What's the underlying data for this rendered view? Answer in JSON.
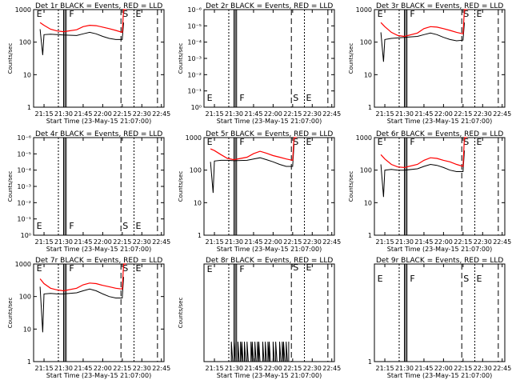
{
  "chart_data": [
    {
      "type": "line",
      "title": "Det 1r BLACK = Events, RED = LLD",
      "xlabel": "Start Time (23-May-15 21:07:00)",
      "ylabel": "Counts/sec",
      "x_ticks": [
        "21:15",
        "21:30",
        "21:45",
        "22:00",
        "22:15",
        "22:30",
        "22:45"
      ],
      "y_ticks": [
        "1",
        "10",
        "100",
        "1000"
      ],
      "y_scale": "log",
      "ylim": [
        1,
        1000
      ],
      "annotations": [
        "E",
        "F",
        "S",
        "E"
      ],
      "series": [
        {
          "name": "Events",
          "color": "#000000",
          "x": [
            "21:12",
            "21:14",
            "21:15",
            "21:20",
            "21:25",
            "21:30",
            "21:40",
            "21:45",
            "21:50",
            "21:55",
            "22:00",
            "22:05",
            "22:10",
            "22:15",
            "22:16"
          ],
          "y": [
            250,
            40,
            170,
            175,
            170,
            165,
            160,
            180,
            200,
            180,
            150,
            130,
            120,
            120,
            400
          ]
        },
        {
          "name": "LLD",
          "color": "#ff0000",
          "x": [
            "21:12",
            "21:15",
            "21:20",
            "21:25",
            "21:30",
            "21:40",
            "21:45",
            "21:50",
            "21:55",
            "22:00",
            "22:05",
            "22:10",
            "22:15",
            "22:16",
            "22:18"
          ],
          "y": [
            400,
            330,
            250,
            220,
            210,
            240,
            300,
            330,
            320,
            290,
            260,
            230,
            200,
            1000,
            1000
          ]
        }
      ]
    },
    {
      "type": "line",
      "title": "Det 2r BLACK = Events, RED = LLD",
      "xlabel": "Start Time (23-May-15 21:07:00)",
      "ylabel": "Counts/sec",
      "x_ticks": [
        "21:15",
        "21:30",
        "21:45",
        "22:00",
        "22:15",
        "22:30",
        "22:45"
      ],
      "y_ticks": [
        "10⁰",
        "10⁻¹",
        "10⁻²",
        "10⁻³",
        "10⁻⁴",
        "10⁻⁵",
        "10⁻⁶"
      ],
      "y_scale": "log",
      "annotations": [
        "E",
        "F",
        "S",
        "E"
      ],
      "series": []
    },
    {
      "type": "line",
      "title": "Det 3r BLACK = Events, RED = LLD",
      "xlabel": "Start Time (23-May-15 21:07:00)",
      "ylabel": "Counts/sec",
      "x_ticks": [
        "21:15",
        "21:30",
        "21:45",
        "22:00",
        "22:15",
        "22:30",
        "22:45"
      ],
      "y_ticks": [
        "1",
        "10",
        "100",
        "1000"
      ],
      "y_scale": "log",
      "ylim": [
        1,
        1000
      ],
      "annotations": [
        "E",
        "F",
        "S",
        "E"
      ],
      "series": [
        {
          "name": "Events",
          "color": "#000000",
          "x": [
            "21:12",
            "21:14",
            "21:15",
            "21:20",
            "21:25",
            "21:30",
            "21:40",
            "21:45",
            "21:50",
            "21:55",
            "22:00",
            "22:05",
            "22:10",
            "22:15",
            "22:16"
          ],
          "y": [
            200,
            25,
            120,
            130,
            135,
            140,
            150,
            170,
            190,
            170,
            140,
            120,
            110,
            115,
            400
          ]
        },
        {
          "name": "LLD",
          "color": "#ff0000",
          "x": [
            "21:12",
            "21:15",
            "21:20",
            "21:25",
            "21:30",
            "21:40",
            "21:45",
            "21:50",
            "21:55",
            "22:00",
            "22:05",
            "22:10",
            "22:15",
            "22:16",
            "22:18"
          ],
          "y": [
            400,
            300,
            200,
            160,
            150,
            190,
            260,
            300,
            290,
            260,
            230,
            200,
            180,
            1000,
            1000
          ]
        }
      ]
    },
    {
      "type": "line",
      "title": "Det 4r BLACK = Events, RED = LLD",
      "xlabel": "Start Time (23-May-15 21:07:00)",
      "ylabel": "Counts/sec",
      "x_ticks": [
        "21:15",
        "21:30",
        "21:45",
        "22:00",
        "22:15",
        "22:30",
        "22:45"
      ],
      "y_ticks": [
        "10⁰",
        "10⁻¹",
        "10⁻²",
        "10⁻³",
        "10⁻⁴",
        "10⁻⁵",
        "10⁻⁶"
      ],
      "y_scale": "log",
      "annotations": [
        "E",
        "F",
        "S",
        "E"
      ],
      "series": []
    },
    {
      "type": "line",
      "title": "Det 5r BLACK = Events, RED = LLD",
      "xlabel": "Start Time (23-May-15 21:07:00)",
      "ylabel": "Counts/sec",
      "x_ticks": [
        "21:15",
        "21:30",
        "21:45",
        "22:00",
        "22:15",
        "22:30",
        "22:45"
      ],
      "y_ticks": [
        "1",
        "10",
        "100",
        "1000"
      ],
      "y_scale": "log",
      "ylim": [
        1,
        1000
      ],
      "annotations": [
        "E",
        "F",
        "S",
        "E"
      ],
      "series": [
        {
          "name": "Events",
          "color": "#000000",
          "x": [
            "21:12",
            "21:14",
            "21:15",
            "21:20",
            "21:25",
            "21:30",
            "21:40",
            "21:45",
            "21:50",
            "21:55",
            "22:00",
            "22:05",
            "22:10",
            "22:15",
            "22:16"
          ],
          "y": [
            180,
            20,
            190,
            200,
            200,
            195,
            200,
            220,
            240,
            210,
            180,
            150,
            130,
            130,
            600
          ]
        },
        {
          "name": "LLD",
          "color": "#ff0000",
          "x": [
            "21:12",
            "21:15",
            "21:20",
            "21:25",
            "21:30",
            "21:40",
            "21:45",
            "21:50",
            "21:55",
            "22:00",
            "22:05",
            "22:10",
            "22:15",
            "22:16",
            "22:18"
          ],
          "y": [
            450,
            400,
            300,
            230,
            210,
            250,
            320,
            380,
            330,
            280,
            250,
            220,
            200,
            1000,
            1000
          ]
        }
      ]
    },
    {
      "type": "line",
      "title": "Det 6r BLACK = Events, RED = LLD",
      "xlabel": "Start Time (23-May-15 21:07:00)",
      "ylabel": "Counts/sec",
      "x_ticks": [
        "21:15",
        "21:30",
        "21:45",
        "22:00",
        "22:15",
        "22:30",
        "22:45"
      ],
      "y_ticks": [
        "1",
        "10",
        "100",
        "1000"
      ],
      "y_scale": "log",
      "ylim": [
        1,
        1000
      ],
      "annotations": [
        "E",
        "F",
        "S",
        "E"
      ],
      "series": [
        {
          "name": "Events",
          "color": "#000000",
          "x": [
            "21:12",
            "21:14",
            "21:15",
            "21:20",
            "21:25",
            "21:30",
            "21:40",
            "21:45",
            "21:50",
            "21:55",
            "22:00",
            "22:05",
            "22:10",
            "22:15",
            "22:16"
          ],
          "y": [
            150,
            15,
            100,
            105,
            100,
            100,
            110,
            130,
            150,
            140,
            120,
            100,
            90,
            90,
            400
          ]
        },
        {
          "name": "LLD",
          "color": "#ff0000",
          "x": [
            "21:12",
            "21:15",
            "21:20",
            "21:25",
            "21:30",
            "21:40",
            "21:45",
            "21:50",
            "21:55",
            "22:00",
            "22:05",
            "22:10",
            "22:15",
            "22:16",
            "22:18"
          ],
          "y": [
            300,
            220,
            150,
            125,
            120,
            150,
            200,
            240,
            230,
            200,
            180,
            150,
            130,
            1000,
            1000
          ]
        }
      ]
    },
    {
      "type": "line",
      "title": "Det 7r BLACK = Events, RED = LLD",
      "xlabel": "Start Time (23-May-15 21:07:00)",
      "ylabel": "Counts/sec",
      "x_ticks": [
        "21:15",
        "21:30",
        "21:45",
        "22:00",
        "22:15",
        "22:30",
        "22:45"
      ],
      "y_ticks": [
        "1",
        "10",
        "100",
        "1000"
      ],
      "y_scale": "log",
      "ylim": [
        1,
        1000
      ],
      "annotations": [
        "E",
        "F",
        "S",
        "E"
      ],
      "series": [
        {
          "name": "Events",
          "color": "#000000",
          "x": [
            "21:12",
            "21:14",
            "21:15",
            "21:20",
            "21:25",
            "21:30",
            "21:40",
            "21:45",
            "21:50",
            "21:55",
            "22:00",
            "22:05",
            "22:10",
            "22:15",
            "22:16"
          ],
          "y": [
            200,
            8,
            120,
            125,
            120,
            120,
            130,
            150,
            170,
            150,
            120,
            100,
            90,
            90,
            400
          ]
        },
        {
          "name": "LLD",
          "color": "#ff0000",
          "x": [
            "21:12",
            "21:15",
            "21:20",
            "21:25",
            "21:30",
            "21:40",
            "21:45",
            "21:50",
            "21:55",
            "22:00",
            "22:05",
            "22:10",
            "22:15",
            "22:16",
            "22:18"
          ],
          "y": [
            350,
            250,
            180,
            160,
            150,
            180,
            230,
            260,
            250,
            220,
            200,
            180,
            170,
            1000,
            1000
          ]
        }
      ]
    },
    {
      "type": "line",
      "title": "Det 8r BLACK = Events, RED = LLD",
      "xlabel": "Start Time (23-May-15 21:07:00)",
      "ylabel": "Counts/sec",
      "x_ticks": [
        "21:15",
        "21:30",
        "21:45",
        "22:00",
        "22:15",
        "22:30",
        "22:45"
      ],
      "y_ticks": [],
      "y_scale": "log",
      "ylim": [
        1,
        10
      ],
      "annotations": [
        "E",
        "F",
        "S",
        "E"
      ],
      "series": [
        {
          "name": "Events",
          "color": "#000000",
          "x": [
            "21:27",
            "21:28",
            "21:29",
            "21:30",
            "21:31",
            "21:32",
            "21:33",
            "21:34",
            "21:35",
            "21:36",
            "21:37",
            "21:38",
            "21:39",
            "21:40",
            "21:41",
            "21:42",
            "21:43",
            "21:44",
            "21:45",
            "21:46",
            "21:47",
            "21:48",
            "21:49",
            "21:50",
            "21:51",
            "21:52",
            "21:53",
            "21:54",
            "21:55",
            "21:56",
            "21:57",
            "21:58",
            "21:59",
            "22:00",
            "22:01",
            "22:02",
            "22:03",
            "22:04",
            "22:05",
            "22:06",
            "22:07",
            "22:08",
            "22:09",
            "22:10",
            "22:11",
            "22:12"
          ],
          "y": [
            1,
            1.6,
            1,
            1.6,
            1,
            1,
            1.6,
            1,
            1.6,
            1.6,
            1,
            1.6,
            1,
            1.6,
            1,
            1,
            1.6,
            1.6,
            1,
            1.6,
            1,
            1.6,
            1.6,
            1,
            1,
            1.6,
            1,
            1.6,
            1,
            1.6,
            1.6,
            1,
            1,
            1.6,
            1,
            1.6,
            1,
            1,
            1.6,
            1,
            1.6,
            1.6,
            1,
            1.6,
            1,
            1.6
          ]
        }
      ]
    },
    {
      "type": "line",
      "title": "Det 9r BLACK = Events, RED = LLD",
      "xlabel": "Start Time (23-May-15 21:07:00)",
      "ylabel": "",
      "x_ticks": [
        "21:15",
        "21:30",
        "21:45",
        "22:00",
        "22:15",
        "22:30",
        "22:45"
      ],
      "y_ticks": [
        "1"
      ],
      "y_scale": "log",
      "annotations": [
        "E",
        "F",
        "S",
        "E"
      ],
      "series": []
    }
  ]
}
